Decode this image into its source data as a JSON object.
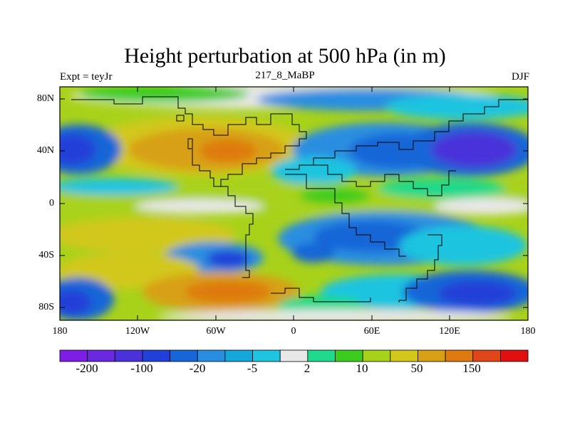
{
  "title": "Height perturbation at 500 hPa (in m)",
  "subtitle_left": "Expt = teyJr",
  "subtitle_center": "217_8_MaBP",
  "subtitle_right": "DJF",
  "y_ticks": [
    "80N",
    "40N",
    "0",
    "40S",
    "80S"
  ],
  "x_ticks": [
    "180",
    "120W",
    "60W",
    "0",
    "60E",
    "120E",
    "180"
  ],
  "colorbar": {
    "colors": [
      "#7d1ee6",
      "#6a28df",
      "#4a31d9",
      "#2040d8",
      "#1666d8",
      "#2a8ee0",
      "#14a8da",
      "#1ec4e0",
      "#e8e8e8",
      "#1fd98c",
      "#3ccc1e",
      "#a8d21a",
      "#d2c81c",
      "#d8a012",
      "#de7a10",
      "#e0461a",
      "#e01010"
    ],
    "labels": [
      "-200",
      "-100",
      "-20",
      "-5",
      "2",
      "10",
      "50",
      "150"
    ]
  }
}
